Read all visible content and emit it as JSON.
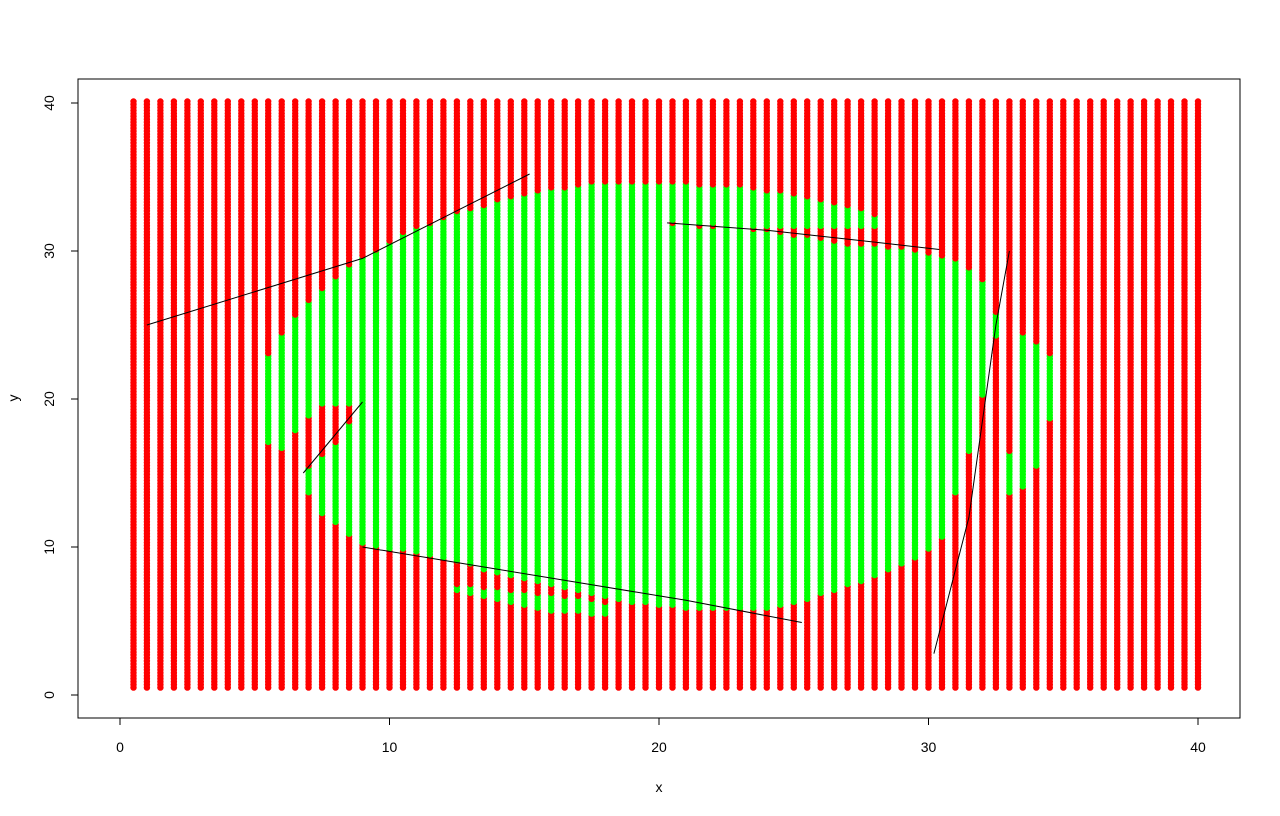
{
  "chart_data": {
    "type": "scatter",
    "title": "",
    "xlabel": "x",
    "ylabel": "y",
    "xlim": [
      0,
      41.2
    ],
    "ylim": [
      0,
      41.2
    ],
    "x_ticks": [
      0,
      10,
      20,
      30,
      40
    ],
    "y_ticks": [
      0,
      10,
      20,
      30,
      40
    ],
    "x_tick_labels": [
      "0",
      "10",
      "20",
      "30",
      "40"
    ],
    "y_tick_labels": [
      "0",
      "10",
      "20",
      "30",
      "40"
    ],
    "grid": false,
    "legend": "none",
    "grid_points": {
      "x_start": 0.5,
      "x_end": 40.0,
      "x_step": 0.5,
      "y_start": 0.5,
      "y_end": 40.0,
      "y_step": 0.2
    },
    "series": [
      {
        "color": "#ff0000",
        "role": "outside"
      },
      {
        "color": "#00ff00",
        "role": "inside"
      }
    ],
    "inside_region_polygon": [
      [
        5.5,
        17
      ],
      [
        5.5,
        23
      ],
      [
        6.3,
        25.2
      ],
      [
        7.3,
        27.2
      ],
      [
        8.7,
        29.2
      ],
      [
        10.3,
        31
      ],
      [
        12.5,
        32.6
      ],
      [
        15,
        33.8
      ],
      [
        17.2,
        34.5
      ],
      [
        20,
        34.6
      ],
      [
        22.8,
        34.4
      ],
      [
        25,
        33.8
      ],
      [
        27,
        33
      ],
      [
        28.4,
        32.2
      ],
      [
        28.4,
        31.6
      ],
      [
        24.5,
        31.6
      ],
      [
        21.5,
        31.7
      ],
      [
        20.3,
        31.9
      ],
      [
        20.3,
        32
      ],
      [
        24,
        31.4
      ],
      [
        27,
        30.5
      ],
      [
        29.5,
        30.1
      ],
      [
        31.2,
        29.2
      ],
      [
        32.3,
        27.5
      ],
      [
        32.6,
        25
      ],
      [
        32.1,
        21
      ],
      [
        31.6,
        17
      ],
      [
        31,
        13.5
      ],
      [
        30.5,
        10.5
      ],
      [
        29.2,
        8.9
      ],
      [
        27.5,
        7.6
      ],
      [
        25.5,
        6.4
      ],
      [
        23.5,
        5.7
      ],
      [
        21.5,
        5.8
      ],
      [
        18.5,
        6.4
      ],
      [
        16,
        7.5
      ],
      [
        13.5,
        8.5
      ],
      [
        11,
        9.6
      ],
      [
        9,
        10.2
      ],
      [
        7.3,
        12.5
      ],
      [
        6.8,
        14.3
      ],
      [
        6.8,
        15.2
      ],
      [
        7.8,
        16.5
      ],
      [
        8.9,
        19.5
      ],
      [
        7.5,
        19.6
      ],
      [
        6.6,
        18.2
      ],
      [
        6.2,
        16.5
      ]
    ],
    "inside_secondary_polygon": [
      [
        33.5,
        24.5
      ],
      [
        34.5,
        23
      ],
      [
        34.6,
        19.5
      ],
      [
        34.2,
        16
      ],
      [
        33.4,
        13.6
      ],
      [
        32.8,
        13.6
      ],
      [
        32.8,
        15
      ],
      [
        33.2,
        17.8
      ],
      [
        33.1,
        21.5
      ]
    ],
    "inside_sliver_polygon": [
      [
        12.5,
        7.4
      ],
      [
        14,
        7.2
      ],
      [
        16,
        6.8
      ],
      [
        18.2,
        6.2
      ],
      [
        18.2,
        5.4
      ],
      [
        16,
        5.6
      ],
      [
        14,
        6.4
      ],
      [
        12.5,
        7.0
      ]
    ],
    "lines": [
      {
        "points": [
          [
            1,
            25
          ],
          [
            9,
            29.5
          ],
          [
            15.2,
            35.2
          ]
        ]
      },
      {
        "points": [
          [
            6.8,
            15
          ],
          [
            9,
            19.8
          ]
        ]
      },
      {
        "points": [
          [
            20.3,
            31.9
          ],
          [
            24,
            31.4
          ],
          [
            28,
            30.6
          ],
          [
            30.4,
            30.1
          ]
        ]
      },
      {
        "points": [
          [
            9,
            10
          ],
          [
            13,
            8.8
          ],
          [
            17,
            7.6
          ],
          [
            21,
            6.4
          ],
          [
            25.3,
            4.9
          ]
        ]
      },
      {
        "points": [
          [
            30.2,
            2.8
          ],
          [
            31.5,
            12
          ],
          [
            32.5,
            25
          ],
          [
            33,
            30
          ]
        ]
      }
    ]
  }
}
